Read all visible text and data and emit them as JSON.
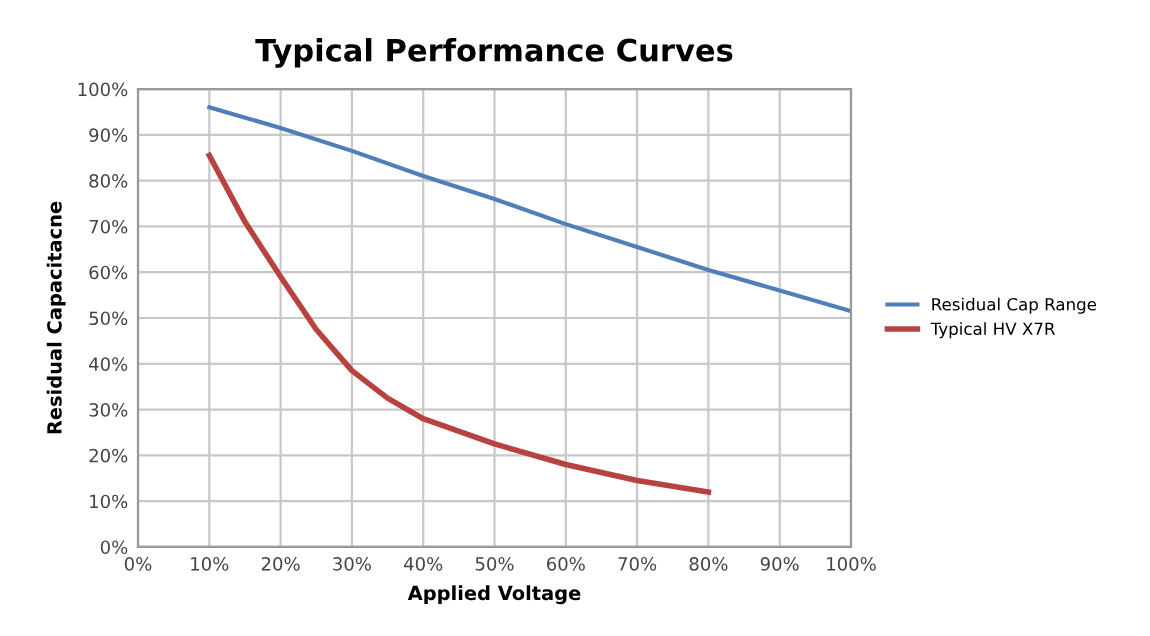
{
  "chart_data": {
    "type": "line",
    "title": "Typical Performance Curves",
    "xlabel": "Applied Voltage",
    "ylabel": "Residual Capacitacne",
    "series": [
      {
        "name": "Residual Cap Range",
        "color": "#4f7fb8",
        "x": [
          10,
          20,
          30,
          40,
          50,
          60,
          70,
          80,
          90,
          100
        ],
        "values": [
          96,
          91.5,
          86.5,
          81,
          76,
          70.5,
          65.5,
          60.5,
          56,
          51.5
        ]
      },
      {
        "name": "Typical HV X7R",
        "color": "#b8423f",
        "x": [
          10,
          15,
          20,
          25,
          30,
          35,
          40,
          50,
          60,
          70,
          80
        ],
        "values": [
          85.5,
          71,
          59,
          47.5,
          38.5,
          32.5,
          28,
          22.5,
          18,
          14.5,
          12
        ]
      }
    ],
    "xlim": [
      0,
      100
    ],
    "ylim": [
      0,
      100
    ],
    "xticks": [
      {
        "value": 0,
        "label": "0%"
      },
      {
        "value": 10,
        "label": "10%"
      },
      {
        "value": 20,
        "label": "20%"
      },
      {
        "value": 30,
        "label": "30%"
      },
      {
        "value": 40,
        "label": "40%"
      },
      {
        "value": 50,
        "label": "50%"
      },
      {
        "value": 60,
        "label": "60%"
      },
      {
        "value": 70,
        "label": "70%"
      },
      {
        "value": 80,
        "label": "80%"
      },
      {
        "value": 90,
        "label": "90%"
      },
      {
        "value": 100,
        "label": "100%"
      }
    ],
    "yticks": [
      {
        "value": 0,
        "label": "0%"
      },
      {
        "value": 10,
        "label": "10%"
      },
      {
        "value": 20,
        "label": "20%"
      },
      {
        "value": 30,
        "label": "30%"
      },
      {
        "value": 40,
        "label": "40%"
      },
      {
        "value": 50,
        "label": "50%"
      },
      {
        "value": 60,
        "label": "60%"
      },
      {
        "value": 70,
        "label": "70%"
      },
      {
        "value": 80,
        "label": "80%"
      },
      {
        "value": 90,
        "label": "90%"
      },
      {
        "value": 100,
        "label": "100%"
      }
    ],
    "grid": true,
    "legend": "right",
    "marker": "none",
    "line_style": "solid"
  }
}
